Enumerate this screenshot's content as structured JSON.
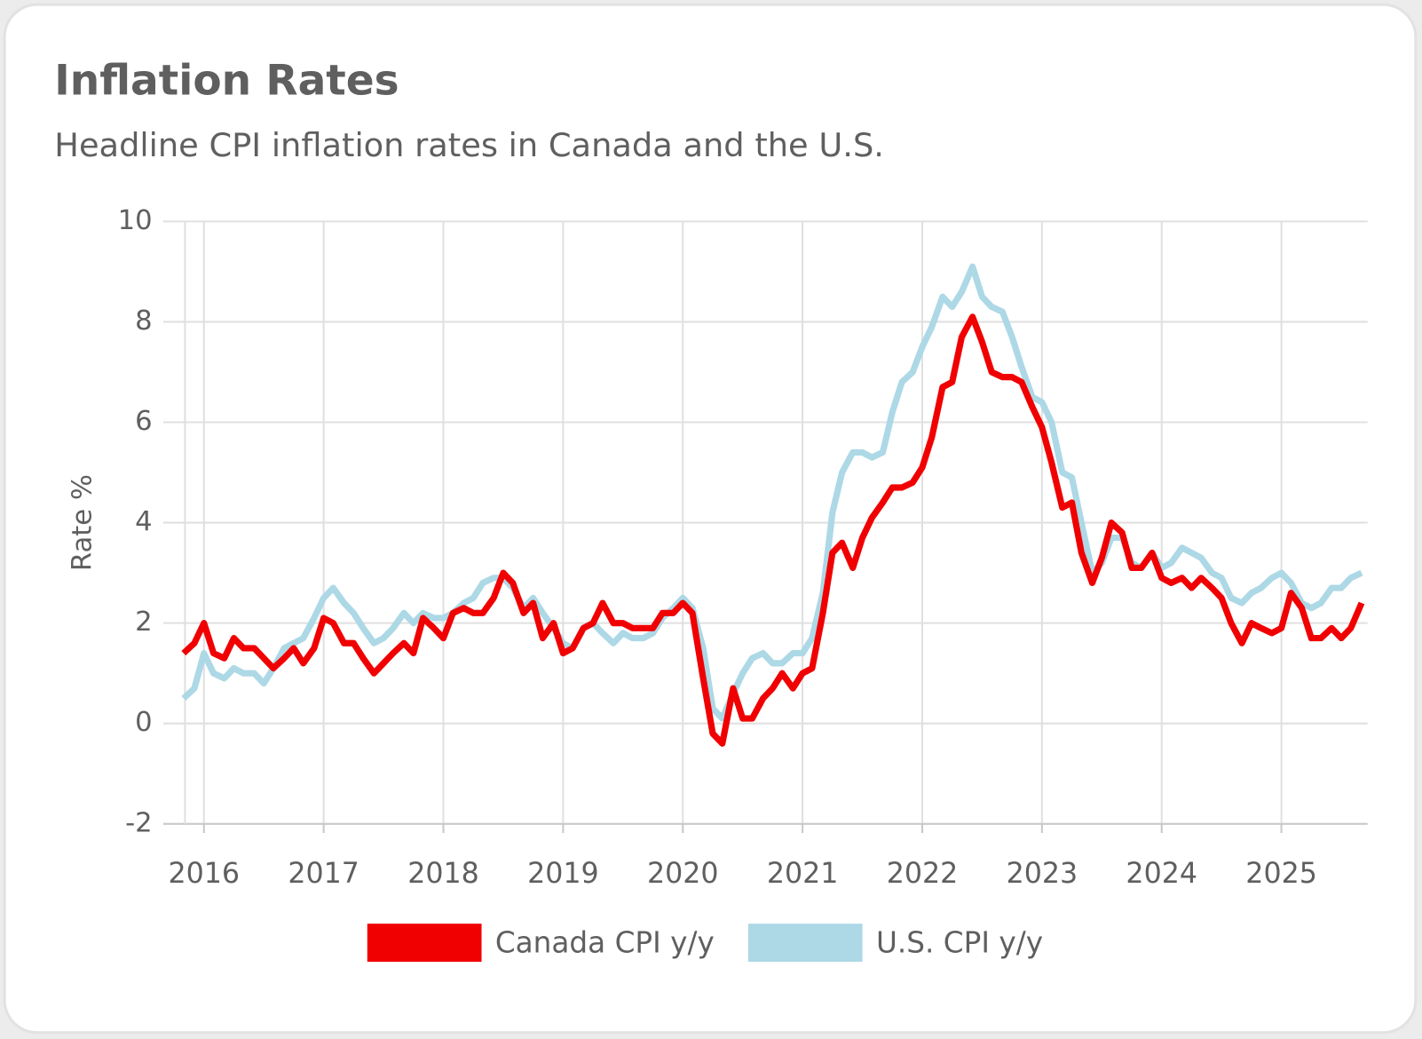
{
  "chart_data": {
    "type": "line",
    "title": "Inflation Rates",
    "subtitle": "Headline CPI inflation rates in Canada and the U.S.",
    "y_label": "Rate %",
    "x": [
      2015.83,
      2015.92,
      2016,
      2016.08,
      2016.17,
      2016.25,
      2016.33,
      2016.42,
      2016.5,
      2016.58,
      2016.67,
      2016.75,
      2016.83,
      2016.92,
      2017,
      2017.08,
      2017.17,
      2017.25,
      2017.33,
      2017.42,
      2017.5,
      2017.58,
      2017.67,
      2017.75,
      2017.83,
      2017.92,
      2018,
      2018.08,
      2018.17,
      2018.25,
      2018.33,
      2018.42,
      2018.5,
      2018.58,
      2018.67,
      2018.75,
      2018.83,
      2018.92,
      2019,
      2019.08,
      2019.17,
      2019.25,
      2019.33,
      2019.42,
      2019.5,
      2019.58,
      2019.67,
      2019.75,
      2019.83,
      2019.92,
      2020,
      2020.08,
      2020.17,
      2020.25,
      2020.33,
      2020.42,
      2020.5,
      2020.58,
      2020.67,
      2020.75,
      2020.83,
      2020.92,
      2021,
      2021.08,
      2021.17,
      2021.25,
      2021.33,
      2021.42,
      2021.5,
      2021.58,
      2021.67,
      2021.75,
      2021.83,
      2021.92,
      2022,
      2022.08,
      2022.17,
      2022.25,
      2022.33,
      2022.42,
      2022.5,
      2022.58,
      2022.67,
      2022.75,
      2022.83,
      2022.92,
      2023,
      2023.08,
      2023.17,
      2023.25,
      2023.33,
      2023.42,
      2023.5,
      2023.58,
      2023.67,
      2023.75,
      2023.83,
      2023.92,
      2024,
      2024.08,
      2024.17,
      2024.25,
      2024.33,
      2024.42,
      2024.5,
      2024.58,
      2024.67,
      2024.75,
      2024.83,
      2024.92,
      2025,
      2025.08,
      2025.17,
      2025.25,
      2025.33,
      2025.42,
      2025.5,
      2025.58,
      2025.67
    ],
    "series": [
      {
        "name": "Canada CPI y/y",
        "color": "#f00000",
        "values": [
          1.4,
          1.6,
          2.0,
          1.4,
          1.3,
          1.7,
          1.5,
          1.5,
          1.3,
          1.1,
          1.3,
          1.5,
          1.2,
          1.5,
          2.1,
          2.0,
          1.6,
          1.6,
          1.3,
          1.0,
          1.2,
          1.4,
          1.6,
          1.4,
          2.1,
          1.9,
          1.7,
          2.2,
          2.3,
          2.2,
          2.2,
          2.5,
          3.0,
          2.8,
          2.2,
          2.4,
          1.7,
          2.0,
          1.4,
          1.5,
          1.9,
          2.0,
          2.4,
          2.0,
          2.0,
          1.9,
          1.9,
          1.9,
          2.2,
          2.2,
          2.4,
          2.2,
          0.9,
          -0.2,
          -0.4,
          0.7,
          0.1,
          0.1,
          0.5,
          0.7,
          1.0,
          0.7,
          1.0,
          1.1,
          2.2,
          3.4,
          3.6,
          3.1,
          3.7,
          4.1,
          4.4,
          4.7,
          4.7,
          4.8,
          5.1,
          5.7,
          6.7,
          6.8,
          7.7,
          8.1,
          7.6,
          7.0,
          6.9,
          6.9,
          6.8,
          6.3,
          5.9,
          5.2,
          4.3,
          4.4,
          3.4,
          2.8,
          3.3,
          4.0,
          3.8,
          3.1,
          3.1,
          3.4,
          2.9,
          2.8,
          2.9,
          2.7,
          2.9,
          2.7,
          2.5,
          2.0,
          1.6,
          2.0,
          1.9,
          1.8,
          1.9,
          2.6,
          2.3,
          1.7,
          1.7,
          1.9,
          1.7,
          1.9,
          2.4
        ]
      },
      {
        "name": "U.S. CPI y/y",
        "color": "#add8e6",
        "values": [
          0.5,
          0.7,
          1.4,
          1.0,
          0.9,
          1.1,
          1.0,
          1.0,
          0.8,
          1.1,
          1.5,
          1.6,
          1.7,
          2.1,
          2.5,
          2.7,
          2.4,
          2.2,
          1.9,
          1.6,
          1.7,
          1.9,
          2.2,
          2.0,
          2.2,
          2.1,
          2.1,
          2.2,
          2.4,
          2.5,
          2.8,
          2.9,
          2.9,
          2.7,
          2.3,
          2.5,
          2.2,
          1.9,
          1.6,
          1.5,
          1.9,
          2.0,
          1.8,
          1.6,
          1.8,
          1.7,
          1.7,
          1.8,
          2.1,
          2.3,
          2.5,
          2.3,
          1.5,
          0.3,
          0.1,
          0.6,
          1.0,
          1.3,
          1.4,
          1.2,
          1.2,
          1.4,
          1.4,
          1.7,
          2.6,
          4.2,
          5.0,
          5.4,
          5.4,
          5.3,
          5.4,
          6.2,
          6.8,
          7.0,
          7.5,
          7.9,
          8.5,
          8.3,
          8.6,
          9.1,
          8.5,
          8.3,
          8.2,
          7.7,
          7.1,
          6.5,
          6.4,
          6.0,
          5.0,
          4.9,
          4.0,
          3.0,
          3.2,
          3.7,
          3.7,
          3.2,
          3.1,
          3.4,
          3.1,
          3.2,
          3.5,
          3.4,
          3.3,
          3.0,
          2.9,
          2.5,
          2.4,
          2.6,
          2.7,
          2.9,
          3.0,
          2.8,
          2.4,
          2.3,
          2.4,
          2.7,
          2.7,
          2.9,
          3.0
        ]
      }
    ],
    "xlim": [
      2015.66,
      2025.72
    ],
    "xticks": [
      2016,
      2017,
      2018,
      2019,
      2020,
      2021,
      2022,
      2023,
      2024,
      2025
    ],
    "ylim": [
      -2,
      10
    ],
    "yticks": [
      -2,
      0,
      2,
      4,
      6,
      8,
      10
    ],
    "grid": true,
    "legend": "bottom"
  }
}
